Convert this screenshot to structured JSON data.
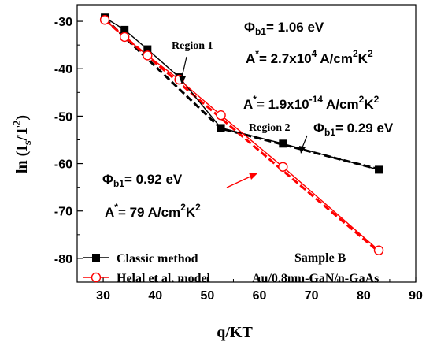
{
  "chart_data": {
    "type": "line",
    "xlabel": "q/KT",
    "ylabel_parts": {
      "base": "ln (I",
      "sub": "s",
      "mid": "/T",
      "sup": "2",
      "end": ")"
    },
    "xlim": [
      25,
      90
    ],
    "ylim": [
      -85,
      -26.5
    ],
    "xticks": [
      30,
      40,
      50,
      60,
      70,
      80,
      90
    ],
    "yticks": [
      -80,
      -70,
      -60,
      -50,
      -40,
      -30
    ],
    "grid": false,
    "legend_position": "bottom-left",
    "series": [
      {
        "name": "Classic method",
        "color": "#000000",
        "marker": "filled-square",
        "x": [
          30.3,
          34.1,
          38.5,
          44.6,
          52.6,
          64.5,
          82.9
        ],
        "y": [
          -29.2,
          -31.8,
          -35.9,
          -41.8,
          -52.5,
          -55.8,
          -61.3
        ]
      },
      {
        "name": "Helal et al. model",
        "color": "#ff0000",
        "marker": "open-circle",
        "x": [
          30.3,
          34.1,
          38.5,
          44.6,
          52.6,
          64.5,
          82.9
        ],
        "y": [
          -29.7,
          -33.3,
          -37.2,
          -42.3,
          -49.8,
          -60.7,
          -78.3
        ]
      }
    ],
    "fit_lines": [
      {
        "color": "#000000",
        "x": [
          30.3,
          52.6,
          82.9
        ],
        "y": [
          -29.4,
          -52.6,
          -61.2
        ]
      },
      {
        "color": "#ff0000",
        "x": [
          30.3,
          82.9
        ],
        "y": [
          -29.7,
          -78.6
        ]
      }
    ],
    "annotations": {
      "region1": "Region 1",
      "region2": "Region 2",
      "phi_black_1": {
        "sym": "Φ",
        "sub": "b1",
        "val": "= 1.06 eV"
      },
      "a_black_1": {
        "pre": "A",
        "sup": "*",
        "mid": "=  2.7x10",
        "exp": "4",
        "unit1": " A/cm",
        "unit_sup": "2",
        "unit2": "K",
        "unit_sup2": "2"
      },
      "a_black_2": {
        "pre": "A",
        "sup": "*",
        "mid": "=  1.9x10",
        "exp": "-14",
        "unit1": " A/cm",
        "unit_sup": "2",
        "unit2": "K",
        "unit_sup2": "2"
      },
      "phi_black_2": {
        "sym": "Φ",
        "sub": "b1",
        "val": "= 0.29 eV"
      },
      "phi_red": {
        "sym": "Φ",
        "sub": "b1",
        "val": "= 0.92 eV"
      },
      "a_red": {
        "pre": "A",
        "sup": "*",
        "mid": "=  79 A/cm",
        "exp": "2",
        "unit2": "K",
        "unit_sup2": "2"
      },
      "sample_title": "Sample B",
      "sample_desc": "Au/0.8nm-GaN/n-GaAs"
    }
  }
}
